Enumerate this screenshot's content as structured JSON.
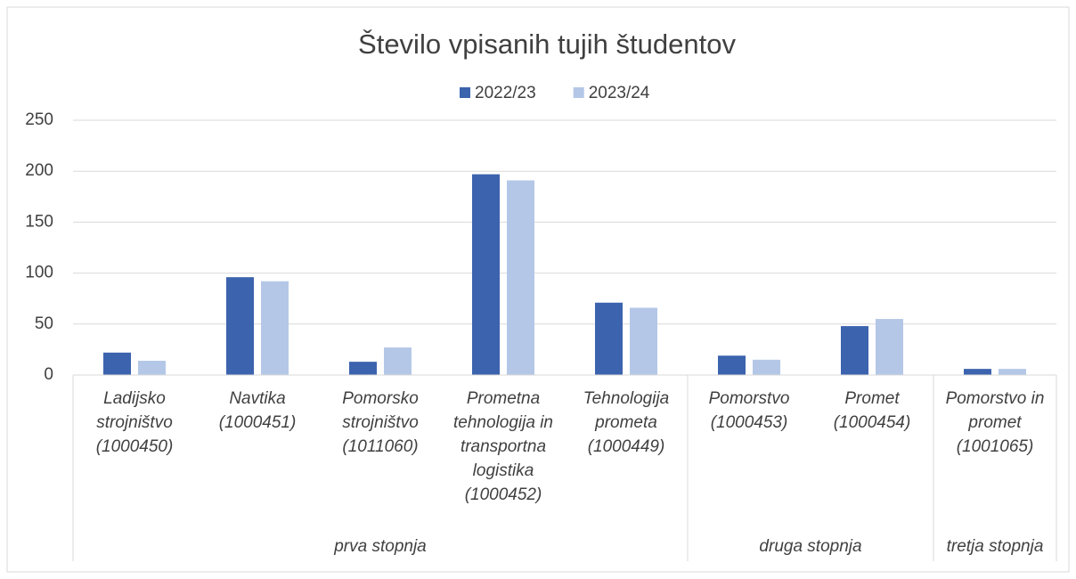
{
  "chart_data": {
    "type": "bar",
    "title": "Število vpisanih tujih študentov",
    "categories": [
      "Ladijsko strojništvo (1000450)",
      "Navtika (1000451)",
      "Pomorsko strojništvo (1011060)",
      "Prometna tehnologija in transportna logistika (1000452)",
      "Tehnologija prometa (1000449)",
      "Pomorstvo (1000453)",
      "Promet (1000454)",
      "Pomorstvo in promet (1001065)"
    ],
    "category_groups": [
      "prva stopnja",
      "prva stopnja",
      "prva stopnja",
      "prva stopnja",
      "prva stopnja",
      "druga stopnja",
      "druga stopnja",
      "tretja stopnja"
    ],
    "series": [
      {
        "name": "2022/23",
        "color": "#3c63ae",
        "values": [
          22,
          96,
          13,
          197,
          71,
          19,
          48,
          6
        ]
      },
      {
        "name": "2023/24",
        "color": "#b4c7e7",
        "values": [
          14,
          92,
          27,
          191,
          66,
          15,
          55,
          6
        ]
      }
    ],
    "ylim": [
      0,
      250
    ],
    "yticks": [
      0,
      50,
      100,
      150,
      200,
      250
    ],
    "grid": true,
    "legend": "top"
  }
}
